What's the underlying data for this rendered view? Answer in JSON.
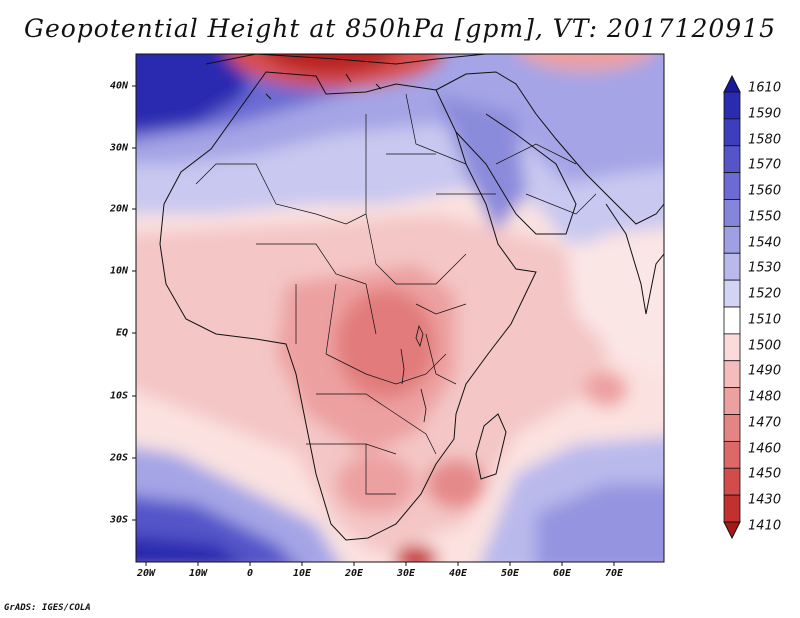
{
  "title": "Geopotential Height at 850hPa [gpm], VT: 2017120915",
  "footer": "GrADS: IGES/COLA",
  "x_axis_labels": [
    "20W",
    "10W",
    "0",
    "10E",
    "20E",
    "30E",
    "40E",
    "50E",
    "60E",
    "70E"
  ],
  "y_axis_labels": [
    "40N",
    "30N",
    "20N",
    "10N",
    "EQ",
    "10S",
    "20S",
    "30S"
  ],
  "colorbar": {
    "levels": [
      "1610",
      "1590",
      "1580",
      "1570",
      "1560",
      "1550",
      "1540",
      "1530",
      "1520",
      "1510",
      "1500",
      "1490",
      "1480",
      "1470",
      "1460",
      "1450",
      "1430",
      "1410"
    ],
    "colors": [
      "#1a1a9e",
      "#2b2bb0",
      "#3d3dbd",
      "#5555c9",
      "#6b6bd3",
      "#8585dc",
      "#9f9fe4",
      "#b9b9ec",
      "#d3d3f4",
      "#ffffff",
      "#fbdada",
      "#f4bcbc",
      "#eda0a0",
      "#e58484",
      "#dd6868",
      "#d24c4c",
      "#c23030",
      "#a81818"
    ]
  }
}
